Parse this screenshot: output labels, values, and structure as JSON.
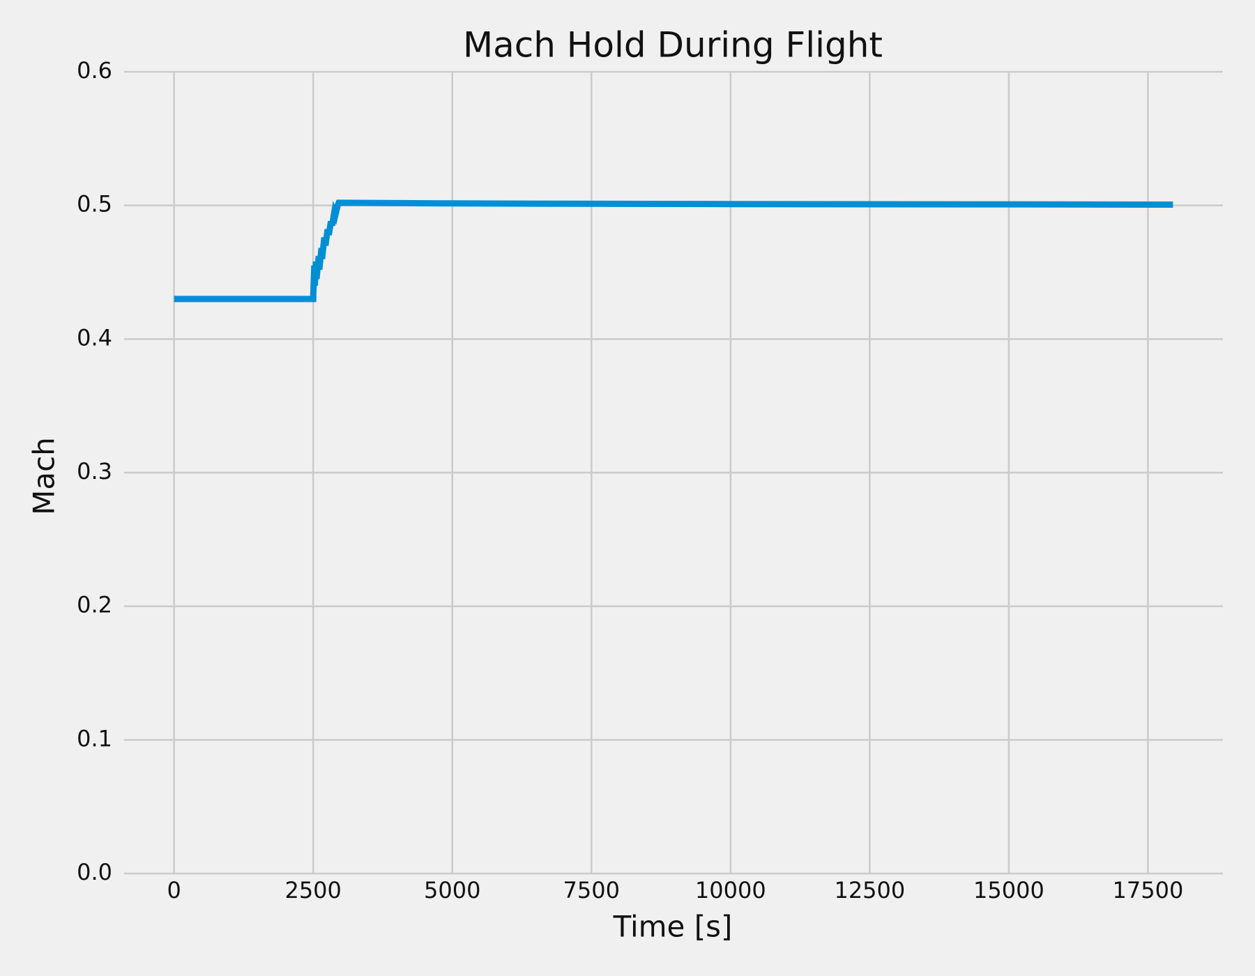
{
  "chart_data": {
    "type": "line",
    "title": "Mach Hold During Flight",
    "xlabel": "Time [s]",
    "ylabel": "Mach",
    "x": [
      0,
      2500,
      2520,
      2530,
      2550,
      2560,
      2600,
      2610,
      2650,
      2660,
      2700,
      2720,
      2760,
      2780,
      2820,
      2840,
      2880,
      2900,
      2940,
      2960,
      5000,
      10000,
      15000,
      17950
    ],
    "series": [
      {
        "color": "#008fd5",
        "values": [
          0.43,
          0.43,
          0.455,
          0.44,
          0.458,
          0.445,
          0.462,
          0.452,
          0.468,
          0.46,
          0.476,
          0.47,
          0.482,
          0.478,
          0.488,
          0.485,
          0.495,
          0.493,
          0.5,
          0.502,
          0.5015,
          0.501,
          0.5008,
          0.5006
        ]
      }
    ],
    "xlim": [
      -897.5,
      18847.5
    ],
    "ylim": [
      0,
      0.6
    ],
    "xticks": [
      0,
      2500,
      5000,
      7500,
      10000,
      12500,
      15000,
      17500
    ],
    "yticks": [
      {
        "value": 0,
        "label": "0.0"
      },
      0.1,
      0.2,
      0.3,
      0.4,
      0.5,
      0.6
    ],
    "grid": true
  }
}
